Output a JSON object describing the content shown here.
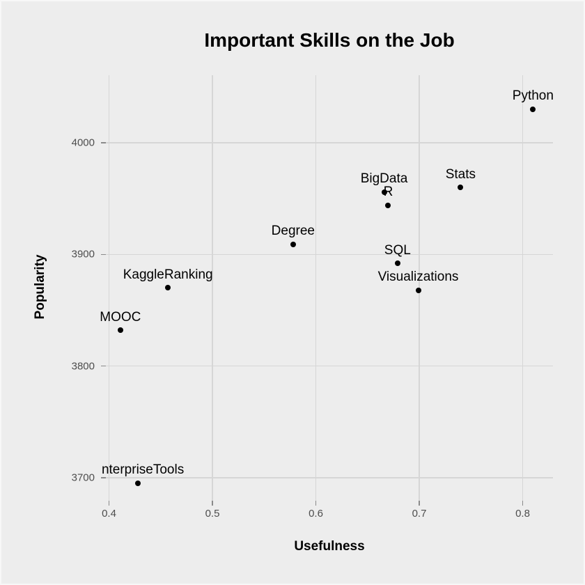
{
  "style": {
    "background": "#ededed",
    "gridline_color": "#d6d6d6",
    "tick_mark_color": "#8a8a8a",
    "tick_label_color": "#4d4d4d",
    "title_color": "#000000",
    "point_color": "#000000"
  },
  "chart_data": {
    "type": "scatter",
    "title": "Important Skills on the Job",
    "xlabel": "Usefulness",
    "ylabel": "Popularity",
    "xlim": [
      0.397,
      0.829
    ],
    "ylim": [
      3679,
      4061
    ],
    "grid": true,
    "legend": false,
    "x_ticks": [
      0.4,
      0.5,
      0.6,
      0.7,
      0.8
    ],
    "x_tick_labels": [
      "0.4",
      "0.5",
      "0.6",
      "0.7",
      "0.8"
    ],
    "y_ticks": [
      3700,
      3800,
      3900,
      4000
    ],
    "y_tick_labels": [
      "3700",
      "3800",
      "3900",
      "4000"
    ],
    "points": [
      {
        "label": "Python",
        "x": 0.81,
        "y": 4030,
        "label_dx": 0
      },
      {
        "label": "Stats",
        "x": 0.74,
        "y": 3960,
        "label_dx": 0
      },
      {
        "label": "BigData",
        "x": 0.666,
        "y": 3956,
        "label_dx": 0
      },
      {
        "label": "R",
        "x": 0.67,
        "y": 3944,
        "label_dx": 0
      },
      {
        "label": "Degree",
        "x": 0.578,
        "y": 3909,
        "label_dx": 0
      },
      {
        "label": "SQL",
        "x": 0.679,
        "y": 3892,
        "label_dx": 0
      },
      {
        "label": "Visualizations",
        "x": 0.699,
        "y": 3868,
        "label_dx": 0
      },
      {
        "label": "KaggleRanking",
        "x": 0.457,
        "y": 3870,
        "label_dx": 0
      },
      {
        "label": "MOOC",
        "x": 0.411,
        "y": 3832,
        "label_dx": 0
      },
      {
        "label": "nterpriseTools",
        "x": 0.428,
        "y": 3695,
        "label_dx": 7
      }
    ]
  }
}
